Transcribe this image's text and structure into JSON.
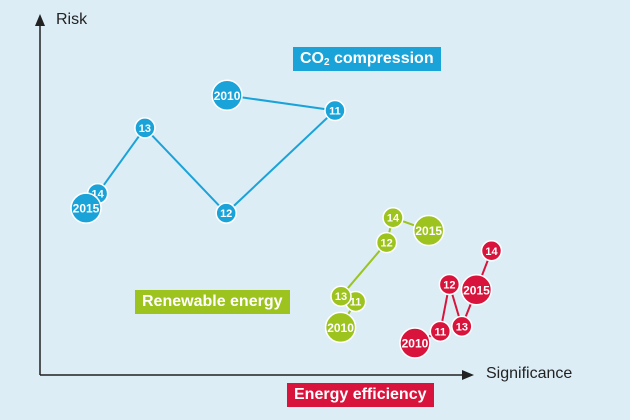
{
  "chart_data": {
    "type": "line",
    "xlabel": "Significance",
    "ylabel": "Risk",
    "xlim": [
      0,
      100
    ],
    "ylim": [
      0,
      100
    ],
    "grid": false,
    "legend": "inline labels",
    "series": [
      {
        "name": "CO₂ compression",
        "label_main": "CO",
        "label_sub": "2",
        "label_rest": " compression",
        "color": "#1aa3d9",
        "points": [
          {
            "label": "2010",
            "x": 43.5,
            "y": 78.8,
            "r": 15
          },
          {
            "label": "11",
            "x": 68.6,
            "y": 74.5,
            "r": 10
          },
          {
            "label": "12",
            "x": 43.3,
            "y": 45.6,
            "r": 10
          },
          {
            "label": "13",
            "x": 24.4,
            "y": 69.6,
            "r": 10
          },
          {
            "label": "14",
            "x": 13.4,
            "y": 51.1,
            "r": 10
          },
          {
            "label": "2015",
            "x": 10.7,
            "y": 47.0,
            "r": 15
          }
        ]
      },
      {
        "name": "Renewable energy",
        "label_main": "Renewable energy",
        "label_sub": "",
        "label_rest": "",
        "color": "#9cc31e",
        "points": [
          {
            "label": "2010",
            "x": 69.9,
            "y": 13.4,
            "r": 15
          },
          {
            "label": "11",
            "x": 73.4,
            "y": 20.7,
            "r": 10
          },
          {
            "label": "13",
            "x": 70.0,
            "y": 22.2,
            "r": 10
          },
          {
            "label": "12",
            "x": 80.6,
            "y": 37.3,
            "r": 10
          },
          {
            "label": "14",
            "x": 82.1,
            "y": 44.3,
            "r": 10
          },
          {
            "label": "2015",
            "x": 90.4,
            "y": 40.7,
            "r": 15
          }
        ]
      },
      {
        "name": "Energy efficiency",
        "label_main": "Energy efficiency",
        "label_sub": "",
        "label_rest": "",
        "color": "#d9143c",
        "points": [
          {
            "label": "2010",
            "x": 87.2,
            "y": 9.0,
            "r": 15
          },
          {
            "label": "11",
            "x": 93.1,
            "y": 12.3,
            "r": 10
          },
          {
            "label": "12",
            "x": 95.2,
            "y": 25.5,
            "r": 10
          },
          {
            "label": "13",
            "x": 98.1,
            "y": 13.7,
            "r": 10
          },
          {
            "label": "2015",
            "x": 101.5,
            "y": 24.0,
            "r": 15
          },
          {
            "label": "14",
            "x": 105.0,
            "y": 35.0,
            "r": 10
          }
        ]
      }
    ]
  }
}
